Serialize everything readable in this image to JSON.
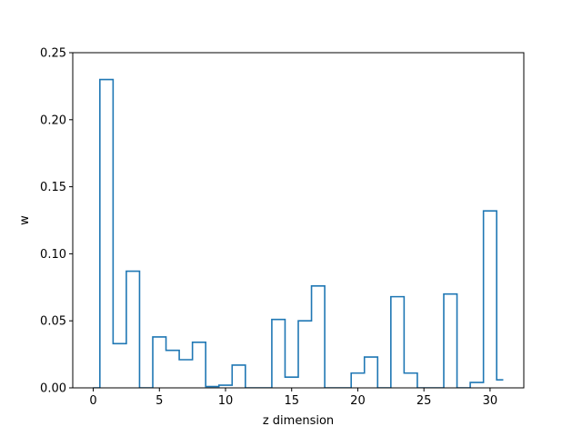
{
  "chart_data": {
    "type": "step",
    "title": "",
    "xlabel": "z dimension",
    "ylabel": "w",
    "xlim": [
      -1.55,
      32.55
    ],
    "ylim": [
      0.0,
      0.25
    ],
    "grid": false,
    "legend": "none",
    "line_color": "#1f77b4",
    "x": [
      0,
      1,
      2,
      3,
      4,
      5,
      6,
      7,
      8,
      9,
      10,
      11,
      12,
      13,
      14,
      15,
      16,
      17,
      18,
      19,
      20,
      21,
      22,
      23,
      24,
      25,
      26,
      27,
      28,
      29,
      30,
      31
    ],
    "values": [
      0.0,
      0.23,
      0.033,
      0.087,
      0.0,
      0.038,
      0.028,
      0.021,
      0.034,
      0.001,
      0.002,
      0.017,
      0.0,
      0.0,
      0.051,
      0.008,
      0.05,
      0.076,
      0.0,
      0.0,
      0.011,
      0.023,
      0.0,
      0.068,
      0.011,
      0.0,
      0.0,
      0.07,
      0.0,
      0.004,
      0.132,
      0.006
    ],
    "xticks": [
      {
        "value": 0,
        "label": "0"
      },
      {
        "value": 5,
        "label": "5"
      },
      {
        "value": 10,
        "label": "10"
      },
      {
        "value": 15,
        "label": "15"
      },
      {
        "value": 20,
        "label": "20"
      },
      {
        "value": 25,
        "label": "25"
      },
      {
        "value": 30,
        "label": "30"
      }
    ],
    "yticks": [
      {
        "value": 0.0,
        "label": "0.00"
      },
      {
        "value": 0.05,
        "label": "0.05"
      },
      {
        "value": 0.1,
        "label": "0.10"
      },
      {
        "value": 0.15,
        "label": "0.15"
      },
      {
        "value": 0.2,
        "label": "0.20"
      },
      {
        "value": 0.25,
        "label": "0.25"
      }
    ]
  }
}
